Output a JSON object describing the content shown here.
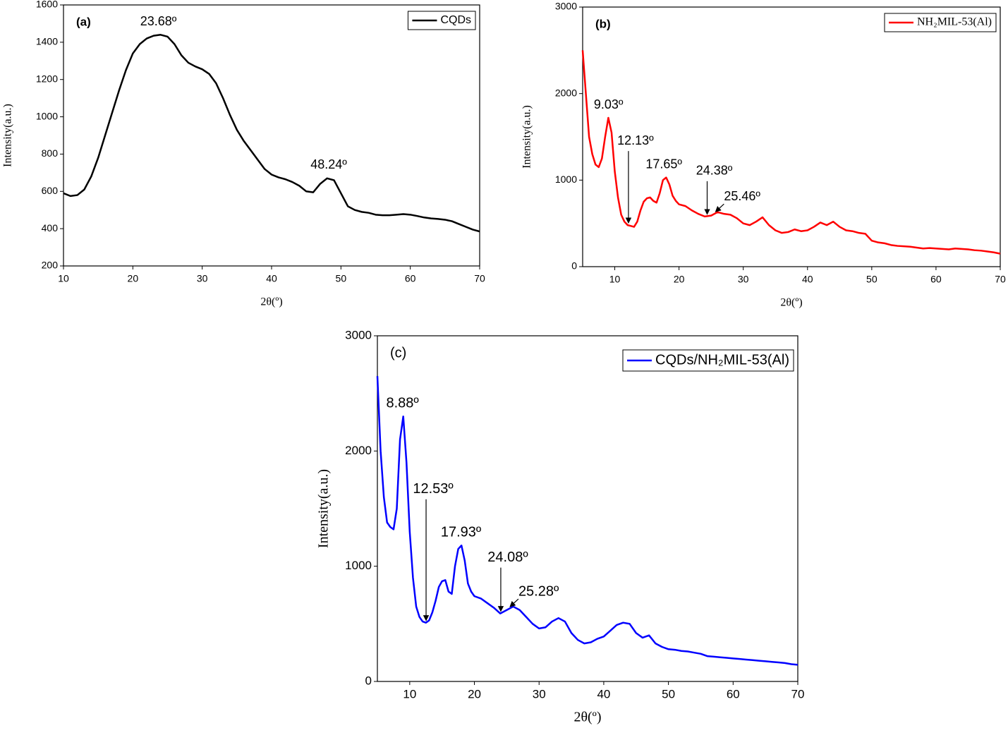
{
  "chart_data": [
    {
      "type": "line",
      "label": "(a)",
      "xlabel": "2θ(º)",
      "ylabel": "Intensity(a.u.)",
      "xlim": [
        10,
        70
      ],
      "ylim": [
        200,
        1600
      ],
      "xticks": [
        10,
        20,
        30,
        40,
        50,
        60,
        70
      ],
      "yticks": [
        200,
        400,
        600,
        800,
        1000,
        1200,
        1400,
        1600
      ],
      "x": [
        10,
        11,
        12,
        13,
        14,
        15,
        16,
        17,
        18,
        19,
        20,
        21,
        22,
        23,
        24,
        25,
        26,
        27,
        28,
        29,
        30,
        31,
        32,
        33,
        34,
        35,
        36,
        37,
        38,
        39,
        40,
        41,
        42,
        43,
        44,
        45,
        46,
        47,
        48,
        49,
        50,
        51,
        52,
        53,
        54,
        55,
        56,
        57,
        58,
        59,
        60,
        61,
        62,
        63,
        64,
        65,
        66,
        67,
        68,
        69,
        70
      ],
      "series": [
        {
          "name": "CQDs",
          "color": "#000000",
          "values": [
            590,
            575,
            580,
            610,
            680,
            780,
            900,
            1020,
            1140,
            1250,
            1340,
            1390,
            1420,
            1435,
            1440,
            1430,
            1390,
            1330,
            1290,
            1270,
            1255,
            1230,
            1180,
            1100,
            1010,
            930,
            870,
            820,
            770,
            720,
            690,
            675,
            665,
            650,
            630,
            600,
            595,
            640,
            670,
            660,
            590,
            520,
            500,
            490,
            485,
            475,
            472,
            472,
            475,
            478,
            475,
            468,
            460,
            455,
            452,
            448,
            440,
            425,
            410,
            395,
            385
          ]
        }
      ],
      "annotations": [
        {
          "text": "23.68º",
          "x": 23.68,
          "y": 1440,
          "arrow": "none"
        },
        {
          "text": "48.24º",
          "x": 48.24,
          "y": 672,
          "arrow": "none"
        }
      ]
    },
    {
      "type": "line",
      "label": "(b)",
      "xlabel": "2θ(º)",
      "ylabel": "Intensity(a.u.)",
      "xlim": [
        5,
        70
      ],
      "ylim": [
        0,
        3000
      ],
      "xticks": [
        10,
        20,
        30,
        40,
        50,
        60,
        70
      ],
      "yticks": [
        0,
        1000,
        2000,
        3000
      ],
      "x": [
        5,
        5.5,
        6,
        6.5,
        7,
        7.5,
        8,
        8.5,
        9,
        9.5,
        10,
        10.5,
        11,
        11.5,
        12,
        12.5,
        13,
        13.5,
        14,
        14.5,
        15,
        15.5,
        16,
        16.5,
        17,
        17.5,
        18,
        18.5,
        19,
        19.5,
        20,
        21,
        22,
        23,
        24,
        25,
        26,
        27,
        28,
        29,
        30,
        31,
        32,
        33,
        34,
        35,
        36,
        37,
        38,
        39,
        40,
        41,
        42,
        43,
        44,
        45,
        46,
        47,
        48,
        49,
        50,
        51,
        52,
        53,
        54,
        55,
        56,
        57,
        58,
        59,
        60,
        61,
        62,
        63,
        64,
        65,
        66,
        67,
        68,
        69,
        70
      ],
      "series": [
        {
          "name": "NH₂MIL-53(Al)",
          "color": "#ff0000",
          "values": [
            2500,
            2000,
            1500,
            1300,
            1180,
            1150,
            1250,
            1500,
            1720,
            1550,
            1100,
            800,
            600,
            520,
            480,
            470,
            460,
            520,
            650,
            750,
            790,
            800,
            760,
            740,
            850,
            1000,
            1030,
            950,
            820,
            760,
            720,
            700,
            650,
            610,
            580,
            590,
            630,
            610,
            600,
            560,
            500,
            480,
            520,
            570,
            480,
            420,
            390,
            400,
            430,
            410,
            420,
            460,
            510,
            480,
            520,
            460,
            420,
            410,
            390,
            380,
            300,
            280,
            270,
            250,
            240,
            235,
            230,
            220,
            210,
            215,
            210,
            205,
            200,
            210,
            205,
            200,
            190,
            185,
            175,
            165,
            150
          ]
        }
      ],
      "annotations": [
        {
          "text": "9.03º",
          "x": 9.03,
          "y": 1720,
          "arrow": "none"
        },
        {
          "text": "12.13º",
          "x": 12.13,
          "y": 480,
          "arrow": "down"
        },
        {
          "text": "17.65º",
          "x": 17.65,
          "y": 1030,
          "arrow": "none"
        },
        {
          "text": "24.38º",
          "x": 24.38,
          "y": 580,
          "arrow": "down"
        },
        {
          "text": "25.46º",
          "x": 25.46,
          "y": 610,
          "arrow": "diagonal"
        }
      ]
    },
    {
      "type": "line",
      "label": "(c)",
      "xlabel": "2θ(º)",
      "ylabel": "Intensity(a.u.)",
      "xlim": [
        5,
        70
      ],
      "ylim": [
        0,
        3000
      ],
      "xticks": [
        10,
        20,
        30,
        40,
        50,
        60,
        70
      ],
      "yticks": [
        0,
        1000,
        2000,
        3000
      ],
      "x": [
        5,
        5.5,
        6,
        6.5,
        7,
        7.5,
        8,
        8.5,
        9,
        9.5,
        10,
        10.5,
        11,
        11.5,
        12,
        12.5,
        13,
        13.5,
        14,
        14.5,
        15,
        15.5,
        16,
        16.5,
        17,
        17.5,
        18,
        18.5,
        19,
        19.5,
        20,
        21,
        22,
        23,
        24,
        25,
        26,
        27,
        28,
        29,
        30,
        31,
        32,
        33,
        34,
        35,
        36,
        37,
        38,
        39,
        40,
        41,
        42,
        43,
        44,
        45,
        46,
        47,
        48,
        49,
        50,
        51,
        52,
        53,
        54,
        55,
        56,
        57,
        58,
        59,
        60,
        61,
        62,
        63,
        64,
        65,
        66,
        67,
        68,
        69,
        70
      ],
      "series": [
        {
          "name": "CQDs/NH₂MIL-53(Al)",
          "color": "#0000ff",
          "values": [
            2650,
            2000,
            1600,
            1380,
            1340,
            1320,
            1500,
            2100,
            2300,
            1900,
            1300,
            900,
            650,
            560,
            520,
            510,
            530,
            600,
            700,
            820,
            870,
            880,
            780,
            760,
            1000,
            1150,
            1180,
            1050,
            850,
            780,
            740,
            720,
            680,
            640,
            590,
            620,
            650,
            620,
            560,
            500,
            460,
            470,
            520,
            550,
            520,
            420,
            360,
            330,
            340,
            370,
            390,
            440,
            490,
            510,
            500,
            420,
            380,
            400,
            330,
            300,
            280,
            275,
            265,
            260,
            250,
            240,
            220,
            215,
            210,
            205,
            200,
            195,
            190,
            185,
            180,
            175,
            170,
            165,
            160,
            150,
            145
          ]
        }
      ],
      "annotations": [
        {
          "text": "8.88º",
          "x": 8.88,
          "y": 2300,
          "arrow": "none"
        },
        {
          "text": "12.53º",
          "x": 12.53,
          "y": 510,
          "arrow": "down"
        },
        {
          "text": "17.93º",
          "x": 17.93,
          "y": 1180,
          "arrow": "none"
        },
        {
          "text": "24.08º",
          "x": 24.08,
          "y": 590,
          "arrow": "down"
        },
        {
          "text": "25.28º",
          "x": 25.28,
          "y": 630,
          "arrow": "diagonal"
        }
      ]
    }
  ]
}
